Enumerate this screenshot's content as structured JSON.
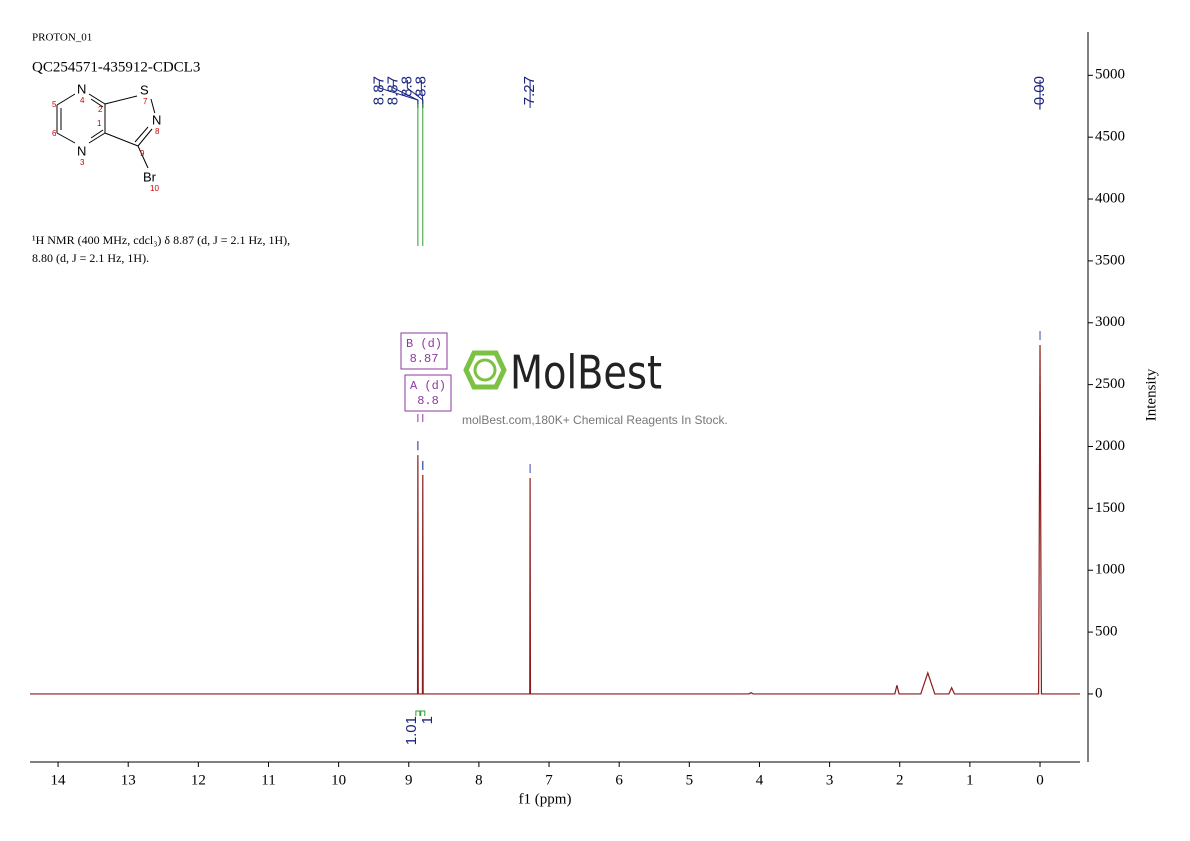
{
  "chart_data": {
    "type": "line",
    "experiment": "PROTON_01",
    "title": "QC254571-435912-CDCL3",
    "structure": {
      "atoms": [
        {
          "label": "N",
          "number": 4
        },
        {
          "label": "N",
          "number": 3
        },
        {
          "label": "S",
          "number": 7
        },
        {
          "label": "N",
          "number": 8
        },
        {
          "label": "Br",
          "number": 10
        },
        {
          "number": 1
        },
        {
          "number": 2
        },
        {
          "number": 5
        },
        {
          "number": 6
        },
        {
          "number": 9
        }
      ]
    },
    "description": [
      "¹H NMR (400 MHz, cdcl₃) δ 8.87 (d, J = 2.1 Hz, 1H),",
      "8.80 (d, J = 2.1 Hz, 1H)."
    ],
    "x": [
      14.4,
      9.0,
      8.875,
      8.87,
      8.865,
      8.805,
      8.8,
      8.795,
      7.6,
      7.275,
      7.27,
      7.265,
      4.15,
      4.12,
      4.09,
      2.07,
      2.04,
      2.01,
      1.7,
      1.6,
      1.5,
      1.3,
      1.26,
      1.22,
      0.02,
      0.0,
      -0.02,
      -0.57
    ],
    "values": [
      0,
      0,
      0,
      1930,
      0,
      0,
      1770,
      0,
      0,
      0,
      1745,
      0,
      0,
      10,
      0,
      0,
      70,
      0,
      0,
      170,
      0,
      0,
      50,
      0,
      0,
      2820,
      0,
      0
    ],
    "color": "#8b1a1a",
    "peak_labels": [
      8.87,
      8.87,
      8.8,
      8.8,
      7.27,
      {
        "value": 0,
        "label": "-0.00"
      }
    ],
    "multiplets": [
      {
        "name": "B (d)",
        "shift": 8.87
      },
      {
        "name": "A (d)",
        "shift": 8.8
      }
    ],
    "integrals": [
      1.01,
      1.0
    ],
    "watermark": "MolBest",
    "watermark_subtitle": "molBest.com,180K+ Chemical Reagents In Stock.",
    "xlabel": "f1 (ppm)",
    "ylabel": "Intensity",
    "xlim": [
      14.4,
      -0.57
    ],
    "ylim": [
      -550,
      5350
    ],
    "xticks": [
      14,
      13,
      12,
      11,
      10,
      9,
      8,
      7,
      6,
      5,
      4,
      3,
      2,
      1,
      0
    ],
    "yticks": [
      0,
      500,
      1000,
      1500,
      2000,
      2500,
      3000,
      3500,
      4000,
      4500,
      5000
    ]
  }
}
